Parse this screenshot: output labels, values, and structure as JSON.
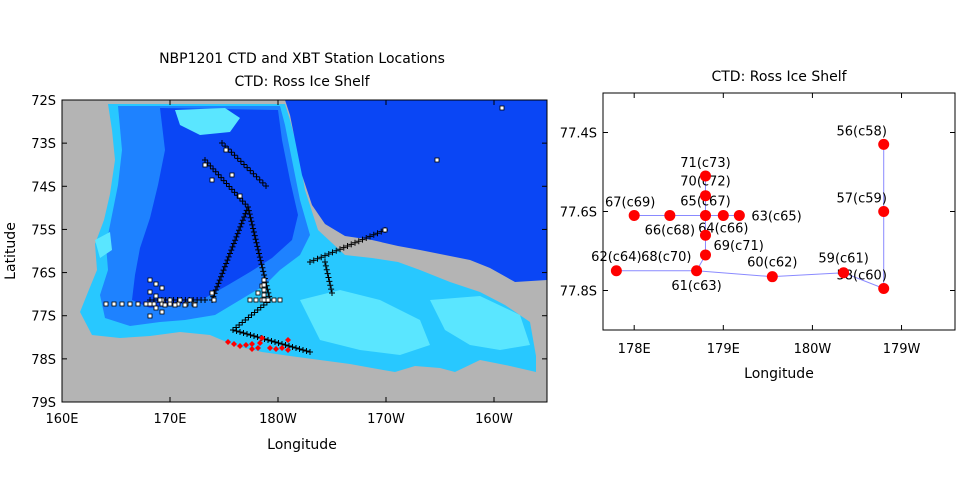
{
  "left_map": {
    "title_line1": "NBP1201 CTD and XBT Station Locations",
    "title_line2": "CTD: Ross Ice Shelf",
    "xlabel": "Longitude",
    "ylabel": "Latitude",
    "x_ticks": [
      "160E",
      "170E",
      "180W",
      "170W",
      "160W"
    ],
    "y_ticks": [
      "72S",
      "73S",
      "74S",
      "75S",
      "76S",
      "77S",
      "78S",
      "79S"
    ],
    "colors": {
      "land": "#b4b4b4",
      "deep": "#0a46f5",
      "mid": "#1e82ff",
      "shallow": "#28c8ff",
      "light": "#5ae6ff",
      "ctd": "#ff0000"
    }
  },
  "right_map": {
    "title": "CTD: Ross Ice Shelf",
    "xlabel": "Longitude",
    "x_ticks": [
      "178E",
      "179E",
      "180W",
      "179W"
    ],
    "y_ticks": [
      "77.4S",
      "77.6S",
      "77.8S"
    ],
    "colors": {
      "station": "#ff0000",
      "track": "#8a8aff"
    },
    "stations": [
      {
        "label": "56(c58)",
        "lon": 180.8,
        "lat": -77.43
      },
      {
        "label": "57(c59)",
        "lon": 180.8,
        "lat": -77.6
      },
      {
        "label": "58(c60)",
        "lon": 180.8,
        "lat": -77.795
      },
      {
        "label": "59(c61)",
        "lon": 180.35,
        "lat": -77.755
      },
      {
        "label": "60(c62)",
        "lon": 179.55,
        "lat": -77.765
      },
      {
        "label": "61(c63)",
        "lon": 178.7,
        "lat": -77.75
      },
      {
        "label": "62(c64)",
        "lon": 177.8,
        "lat": -77.75
      },
      {
        "label": "63(c65)",
        "lon": 179.18,
        "lat": -77.61
      },
      {
        "label": "64(c66)",
        "lon": 179.0,
        "lat": -77.61
      },
      {
        "label": "65(c67)",
        "lon": 178.8,
        "lat": -77.61
      },
      {
        "label": "66(c68)",
        "lon": 178.4,
        "lat": -77.61
      },
      {
        "label": "67(c69)",
        "lon": 178.0,
        "lat": -77.61
      },
      {
        "label": "68(c70)",
        "lon": 178.8,
        "lat": -77.71
      },
      {
        "label": "69(c71)",
        "lon": 178.8,
        "lat": -77.66
      },
      {
        "label": "70(c72)",
        "lon": 178.8,
        "lat": -77.56
      },
      {
        "label": "71(c73)",
        "lon": 178.8,
        "lat": -77.51
      }
    ]
  }
}
